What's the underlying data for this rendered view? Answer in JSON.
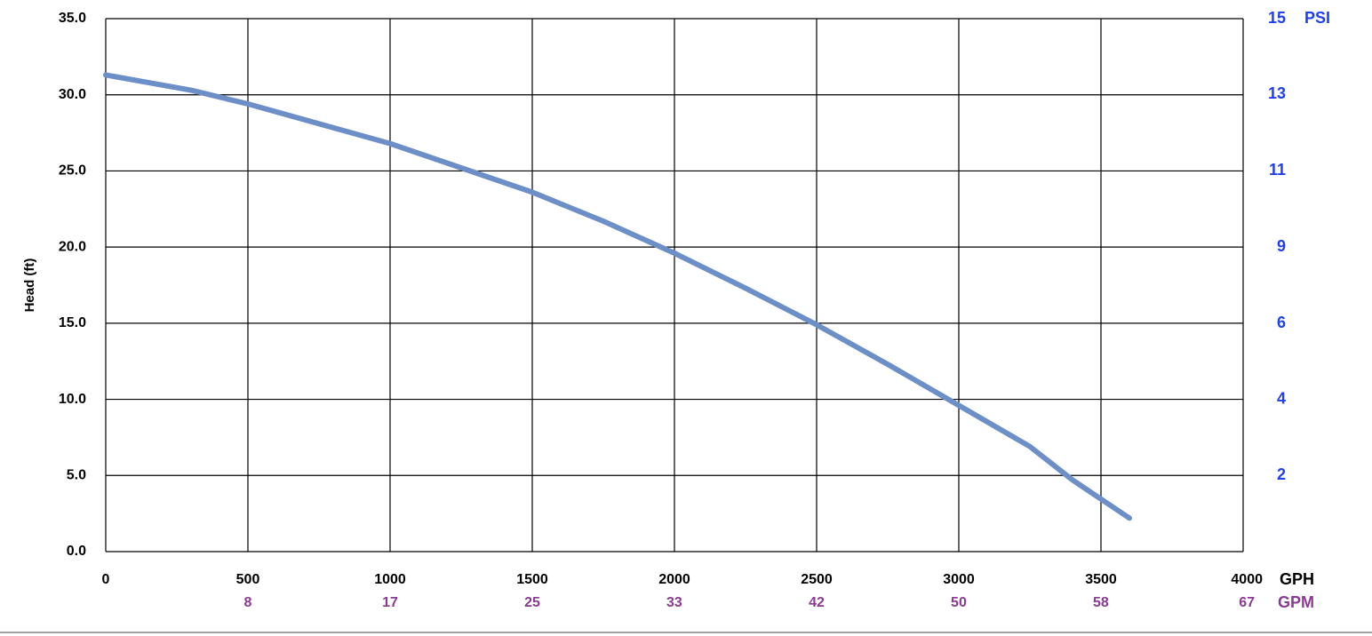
{
  "chart_data": {
    "type": "line",
    "y_label": "Head (ft)",
    "x_unit": "GPH",
    "x2_unit": "GPM",
    "y2_unit": "PSI",
    "x": [
      0,
      300,
      500,
      1000,
      1250,
      1500,
      1750,
      2000,
      2250,
      2500,
      2750,
      3000,
      3250,
      3400,
      3600
    ],
    "values": [
      31.3,
      30.3,
      29.4,
      26.8,
      25.2,
      23.6,
      21.7,
      19.6,
      17.3,
      14.9,
      12.3,
      9.6,
      6.9,
      4.7,
      2.2
    ],
    "color": "#6d8fc8",
    "xlim": [
      0,
      4000
    ],
    "xticks": [
      0,
      500,
      1000,
      1500,
      2000,
      2500,
      3000,
      3500,
      4000
    ],
    "x2lim": [
      0,
      66.67
    ],
    "x2ticks": [
      {
        "value": 8.33,
        "label": "8"
      },
      {
        "value": 16.67,
        "label": "17"
      },
      25,
      {
        "value": 33.33,
        "label": "33"
      },
      {
        "value": 41.67,
        "label": "42"
      },
      50,
      {
        "value": 58.33,
        "label": "58"
      },
      {
        "value": 66.67,
        "label": "67"
      }
    ],
    "ylim": [
      0,
      35
    ],
    "yticks": [
      {
        "value": 0,
        "label": "0.0"
      },
      {
        "value": 5,
        "label": "5.0"
      },
      {
        "value": 10,
        "label": "10.0"
      },
      {
        "value": 15,
        "label": "15.0"
      },
      {
        "value": 20,
        "label": "20.0"
      },
      {
        "value": 25,
        "label": "25.0"
      },
      {
        "value": 30,
        "label": "30.0"
      },
      {
        "value": 35,
        "label": "35.0"
      }
    ],
    "y2lim": [
      0,
      15.16
    ],
    "y2ticks": [
      {
        "value": 2.17,
        "label": "2"
      },
      {
        "value": 4.33,
        "label": "4"
      },
      {
        "value": 6.49,
        "label": "6"
      },
      {
        "value": 8.66,
        "label": "9"
      },
      {
        "value": 10.83,
        "label": "11"
      },
      13,
      {
        "value": 15.16,
        "label": "15"
      }
    ],
    "grid": true
  }
}
